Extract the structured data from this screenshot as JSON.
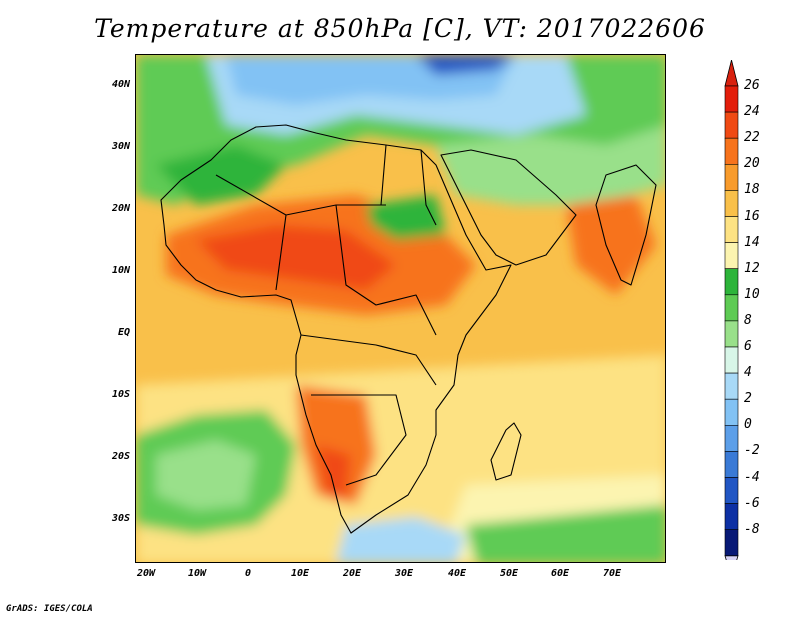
{
  "title": "Temperature at 850hPa [C], VT: 2017022606",
  "credit": "GrADS: IGES/COLA",
  "lat_labels": [
    "40N",
    "30N",
    "20N",
    "10N",
    "EQ",
    "10S",
    "20S",
    "30S"
  ],
  "lon_labels": [
    "20W",
    "10W",
    "0",
    "10E",
    "20E",
    "30E",
    "40E",
    "50E",
    "60E",
    "70E"
  ],
  "colorbar": {
    "labels": [
      "26",
      "24",
      "22",
      "20",
      "18",
      "16",
      "14",
      "12",
      "10",
      "8",
      "6",
      "4",
      "2",
      "0",
      "-2",
      "-4",
      "-6",
      "-8"
    ],
    "colors": [
      "#e31e0b",
      "#f04a14",
      "#f7731c",
      "#f89b2c",
      "#f9c04a",
      "#fde283",
      "#fcf4b0",
      "#2db43a",
      "#5ecb54",
      "#99e08a",
      "#d8f6e8",
      "#a8d9f7",
      "#82c2f4",
      "#5c9fe9",
      "#3a7ad6",
      "#2156c4",
      "#0d30a4",
      "#081976"
    ],
    "top_arrow_color": "#d8210f",
    "bottom_arrow_color": "#d8d4f6"
  },
  "map": {
    "extent": {
      "lon_min": -23,
      "lon_max": 80,
      "lat_min": -37,
      "lat_max": 45
    },
    "ocean_color": "#f9c04a"
  }
}
